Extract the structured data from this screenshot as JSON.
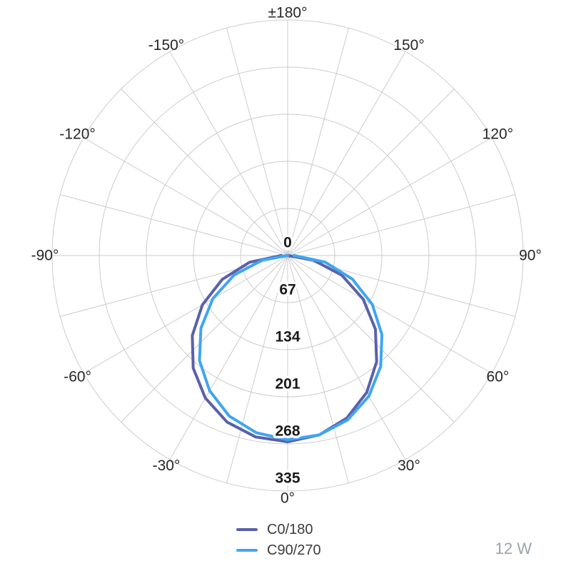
{
  "chart_data": {
    "type": "line",
    "subtype": "polar-photometric",
    "title": "",
    "angle_unit": "deg",
    "radial_ticks": [
      0,
      67,
      134,
      201,
      268,
      335
    ],
    "radial_max": 335,
    "grid": {
      "spoke_step_deg": 15,
      "ring_step": 67,
      "color": "#cccccc",
      "visible": true
    },
    "angle_labels": [
      {
        "angle": 180,
        "label": "±180°"
      },
      {
        "angle": -150,
        "label": "-150°"
      },
      {
        "angle": 150,
        "label": "150°"
      },
      {
        "angle": -120,
        "label": "-120°"
      },
      {
        "angle": 120,
        "label": "120°"
      },
      {
        "angle": -90,
        "label": "-90°"
      },
      {
        "angle": 90,
        "label": "90°"
      },
      {
        "angle": -60,
        "label": "-60°"
      },
      {
        "angle": 60,
        "label": "60°"
      },
      {
        "angle": -30,
        "label": "-30°"
      },
      {
        "angle": 30,
        "label": "30°"
      },
      {
        "angle": 0,
        "label": "0°"
      }
    ],
    "angles_deg": [
      -90,
      -80,
      -70,
      -60,
      -50,
      -40,
      -30,
      -20,
      -10,
      0,
      10,
      20,
      30,
      40,
      50,
      60,
      70,
      80,
      90
    ],
    "series": [
      {
        "name": "C0/180",
        "color": "#5a61a9",
        "values": [
          9,
          55,
          99,
          140,
          177,
          209,
          234,
          252,
          262,
          265,
          259,
          246,
          225,
          197,
          163,
          124,
          82,
          37,
          0
        ]
      },
      {
        "name": "C90/270",
        "color": "#3fa6f0",
        "values": [
          0,
          36,
          81,
          123,
          161,
          195,
          222,
          243,
          256,
          262,
          259,
          249,
          231,
          206,
          175,
          139,
          98,
          54,
          9
        ]
      }
    ],
    "legend_position": "bottom",
    "annotation": "12 W"
  }
}
